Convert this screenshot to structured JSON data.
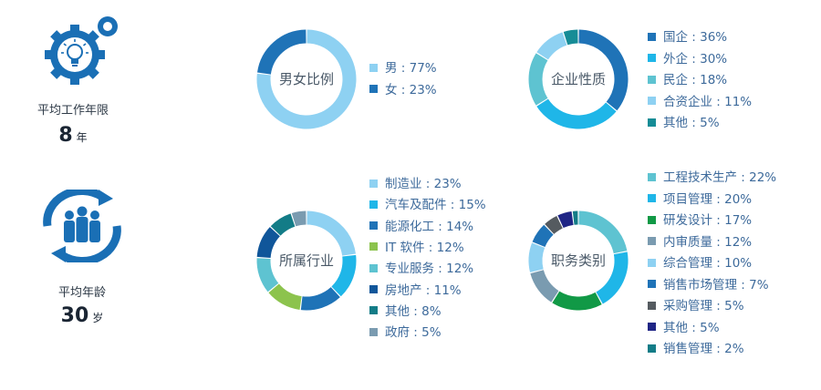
{
  "stats": {
    "work_years": {
      "label": "平均工作年限",
      "value": "8",
      "unit": "年",
      "icon": "gear-lightbulb-icon"
    },
    "age": {
      "label": "平均年龄",
      "value": "30",
      "unit": "岁",
      "icon": "people-cycle-icon"
    }
  },
  "colors": {
    "icon_blue": "#1a6fb5"
  },
  "chart_data": [
    {
      "type": "pie",
      "title": "男女比例",
      "categories": [
        "男 : 77%",
        "女 : 23%"
      ],
      "values": [
        77,
        23
      ],
      "colors": [
        "#8ed1f2",
        "#1f73b7"
      ]
    },
    {
      "type": "pie",
      "title": "企业性质",
      "categories": [
        "国企 : 36%",
        "外企 : 30%",
        "民企 : 18%",
        "合资企业 : 11%",
        "其他 : 5%"
      ],
      "values": [
        36,
        30,
        18,
        11,
        5
      ],
      "colors": [
        "#1f73b7",
        "#1fb6e8",
        "#5ec3d1",
        "#8ed1f2",
        "#168c96"
      ]
    },
    {
      "type": "pie",
      "title": "所属行业",
      "categories": [
        "制造业 : 23%",
        "汽车及配件 : 15%",
        "能源化工 : 14%",
        "IT 软件 : 12%",
        "专业服务 : 12%",
        "房地产 : 11%",
        "其他 : 8%",
        "政府 : 5%"
      ],
      "values": [
        23,
        15,
        14,
        12,
        12,
        11,
        8,
        5
      ],
      "colors": [
        "#8ed1f2",
        "#1fb6e8",
        "#1f73b7",
        "#8cc34d",
        "#5ec3d1",
        "#10569a",
        "#137c87",
        "#7a9bb0"
      ]
    },
    {
      "type": "pie",
      "title": "职务类别",
      "categories": [
        "工程技术生产 : 22%",
        "项目管理 : 20%",
        "研发设计 : 17%",
        "内审质量 : 12%",
        "综合管理 : 10%",
        "销售市场管理 : 7%",
        "采购管理 : 5%",
        "其他 : 5%",
        "销售管理 : 2%"
      ],
      "values": [
        22,
        20,
        17,
        12,
        10,
        7,
        5,
        5,
        2
      ],
      "colors": [
        "#5ec3d1",
        "#1fb6e8",
        "#119946",
        "#7a9bb0",
        "#8ed1f2",
        "#1f73b7",
        "#555b60",
        "#1f2585",
        "#137c87"
      ]
    }
  ]
}
